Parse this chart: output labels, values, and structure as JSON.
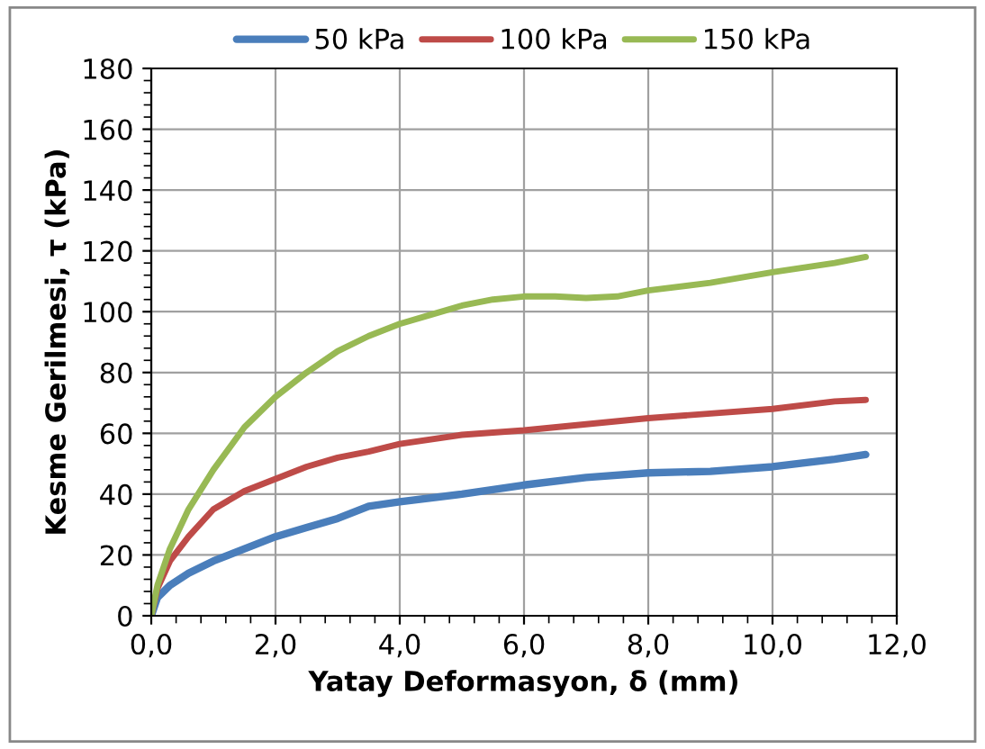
{
  "chart_data": {
    "type": "line",
    "xlabel": "Yatay Deformasyon, δ (mm)",
    "ylabel": "Kesme Gerilmesi, τ (kPa)",
    "xlim": [
      0,
      12
    ],
    "xticks": [
      {
        "value": 0,
        "label": "0,0"
      },
      {
        "value": 2,
        "label": "2,0"
      },
      {
        "value": 4,
        "label": "4,0"
      },
      {
        "value": 6,
        "label": "6,0"
      },
      {
        "value": 8,
        "label": "8,0"
      },
      {
        "value": 10,
        "label": "10,0"
      },
      {
        "value": 12,
        "label": "12,0"
      }
    ],
    "ylim": [
      0,
      180
    ],
    "yticks": [
      0,
      20,
      40,
      60,
      80,
      100,
      120,
      140,
      160,
      180
    ],
    "grid": true,
    "legend": "top",
    "marker": "none",
    "line_style": "solid",
    "series": [
      {
        "name": "50 kPa",
        "color": "#4a7ebb",
        "x": [
          0,
          0.1,
          0.3,
          0.6,
          1,
          1.5,
          2,
          2.5,
          3,
          3.5,
          4,
          5,
          6,
          7,
          8,
          9,
          10,
          11,
          11.5
        ],
        "values": [
          0,
          6,
          10,
          14,
          18,
          22,
          26,
          29,
          32,
          36,
          37.5,
          40,
          43,
          45.5,
          47,
          47.5,
          49,
          51.5,
          53
        ]
      },
      {
        "name": "100 kPa",
        "color": "#be4b48",
        "x": [
          0,
          0.1,
          0.3,
          0.6,
          1,
          1.5,
          2,
          2.5,
          3,
          3.5,
          4,
          5,
          6,
          7,
          8,
          9,
          10,
          11,
          11.5
        ],
        "values": [
          0,
          9,
          18,
          26,
          35,
          41,
          45,
          49,
          52,
          54,
          56.5,
          59.5,
          61,
          63,
          65,
          66.5,
          68,
          70.5,
          71
        ]
      },
      {
        "name": "150 kPa",
        "color": "#98b954",
        "x": [
          0,
          0.1,
          0.3,
          0.6,
          1,
          1.5,
          2,
          2.5,
          3,
          3.5,
          4,
          4.5,
          5,
          5.5,
          6,
          6.5,
          7,
          7.5,
          8,
          9,
          10,
          11,
          11.5
        ],
        "values": [
          0,
          10,
          22,
          35,
          48,
          62,
          72,
          80,
          87,
          92,
          96,
          99,
          102,
          104,
          105,
          105,
          104.5,
          105,
          107,
          109.5,
          113,
          116,
          118
        ]
      }
    ]
  }
}
